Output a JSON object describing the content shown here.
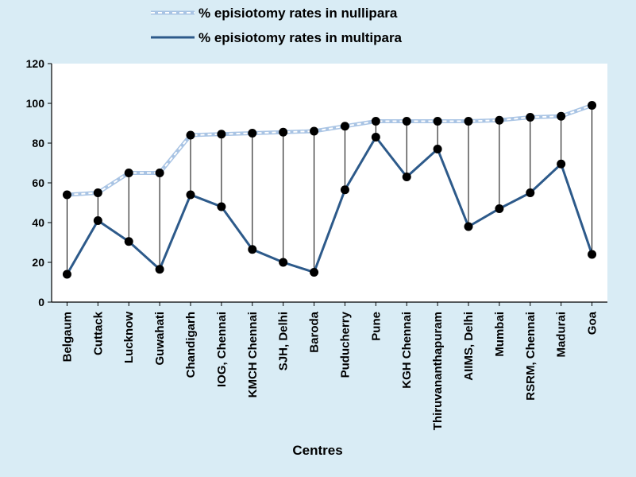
{
  "chart_data": {
    "type": "line",
    "xlabel": "Centres",
    "ylabel": "",
    "ylim": [
      0,
      120
    ],
    "yticks": [
      0,
      20,
      40,
      60,
      80,
      100,
      120
    ],
    "grid": false,
    "legend_position": "top",
    "categories": [
      "Belgaum",
      "Cuttack",
      "Lucknow",
      "Guwahati",
      "Chandigarh",
      "IOG, Chennai",
      "KMCH Chennai",
      "SJH, Delhi",
      "Baroda",
      "Puducherry",
      "Pune",
      "KGH Chennai",
      "Thiruvananthapuram",
      "AIIMS, Delhi",
      "Mumbai",
      "RSRM, Chennai",
      "Madurai",
      "Goa"
    ],
    "series": [
      {
        "name": "% episiotomy rates in nullipara",
        "color": "#a9c4e4",
        "style": "dashed",
        "values": [
          54,
          55,
          65,
          65,
          84,
          84.5,
          85,
          85.5,
          86,
          88.5,
          91,
          91,
          91,
          91,
          91.5,
          93,
          93.5,
          99
        ]
      },
      {
        "name": "% episiotomy rates in multipara",
        "color": "#2d5a8a",
        "style": "solid",
        "values": [
          14,
          41,
          30.5,
          16.5,
          54,
          48,
          26.5,
          20,
          15,
          56.5,
          83,
          63,
          77,
          38,
          47,
          55,
          69.5,
          24
        ]
      }
    ]
  }
}
